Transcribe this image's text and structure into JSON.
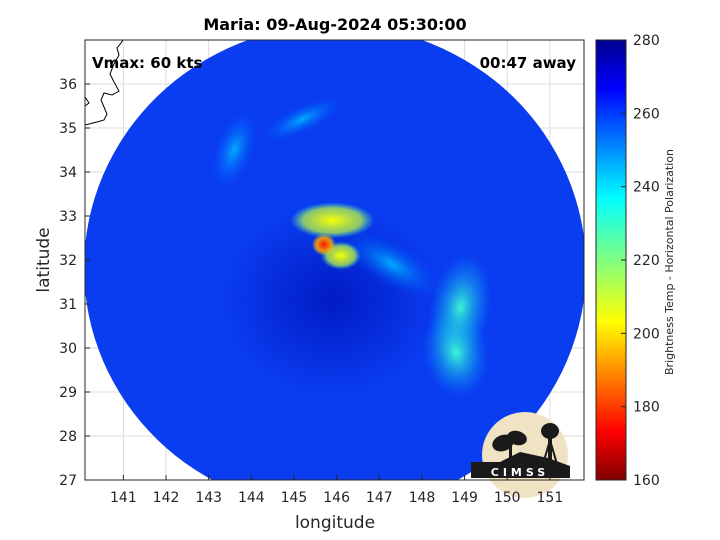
{
  "figure": {
    "title": "Maria: 09-Aug-2024 05:30:00",
    "vmax_label": "Vmax: 60 kts",
    "time_away_label": "00:47 away",
    "xlabel": "longitude",
    "ylabel": "latitude",
    "logo_text": "CIMSS"
  },
  "chart_data": {
    "type": "heatmap",
    "title": "Maria: 09-Aug-2024 05:30:00",
    "xlabel": "longitude",
    "ylabel": "latitude",
    "xlim": [
      140.1,
      151.8
    ],
    "ylim": [
      27,
      37
    ],
    "x_ticks": [
      "141",
      "142",
      "143",
      "144",
      "145",
      "146",
      "147",
      "148",
      "149",
      "150",
      "151"
    ],
    "y_ticks": [
      "27",
      "28",
      "29",
      "30",
      "31",
      "32",
      "33",
      "34",
      "35",
      "36"
    ],
    "grid": true,
    "colorbar": {
      "label": "Brightness Temp - Horizontal Polarization",
      "range": [
        160,
        280
      ],
      "ticks": [
        "160",
        "180",
        "200",
        "220",
        "240",
        "260",
        "280"
      ],
      "colormap": "jet"
    },
    "swath": {
      "center_lon": 145.9,
      "center_lat": 31.9,
      "background_value": 268
    },
    "storm_center": {
      "lon": 145.8,
      "lat": 32.3,
      "min_value": 175
    },
    "features": [
      {
        "name": "inner-ring-north",
        "lon": 145.9,
        "lat": 32.9,
        "value": 215
      },
      {
        "name": "eyewall-core",
        "lon": 145.7,
        "lat": 32.35,
        "value": 178
      },
      {
        "name": "eyewall-east",
        "lon": 146.1,
        "lat": 32.1,
        "value": 205
      },
      {
        "name": "spiral-band-east",
        "lon": 147.3,
        "lat": 31.9,
        "value": 238
      },
      {
        "name": "spiral-band-southeast",
        "lon": 148.9,
        "lat": 30.9,
        "value": 232
      },
      {
        "name": "spiral-band-south",
        "lon": 148.8,
        "lat": 29.9,
        "value": 236
      },
      {
        "name": "northwest-band",
        "lon": 143.6,
        "lat": 34.5,
        "value": 245
      },
      {
        "name": "north-band",
        "lon": 145.2,
        "lat": 35.2,
        "value": 246
      }
    ]
  }
}
